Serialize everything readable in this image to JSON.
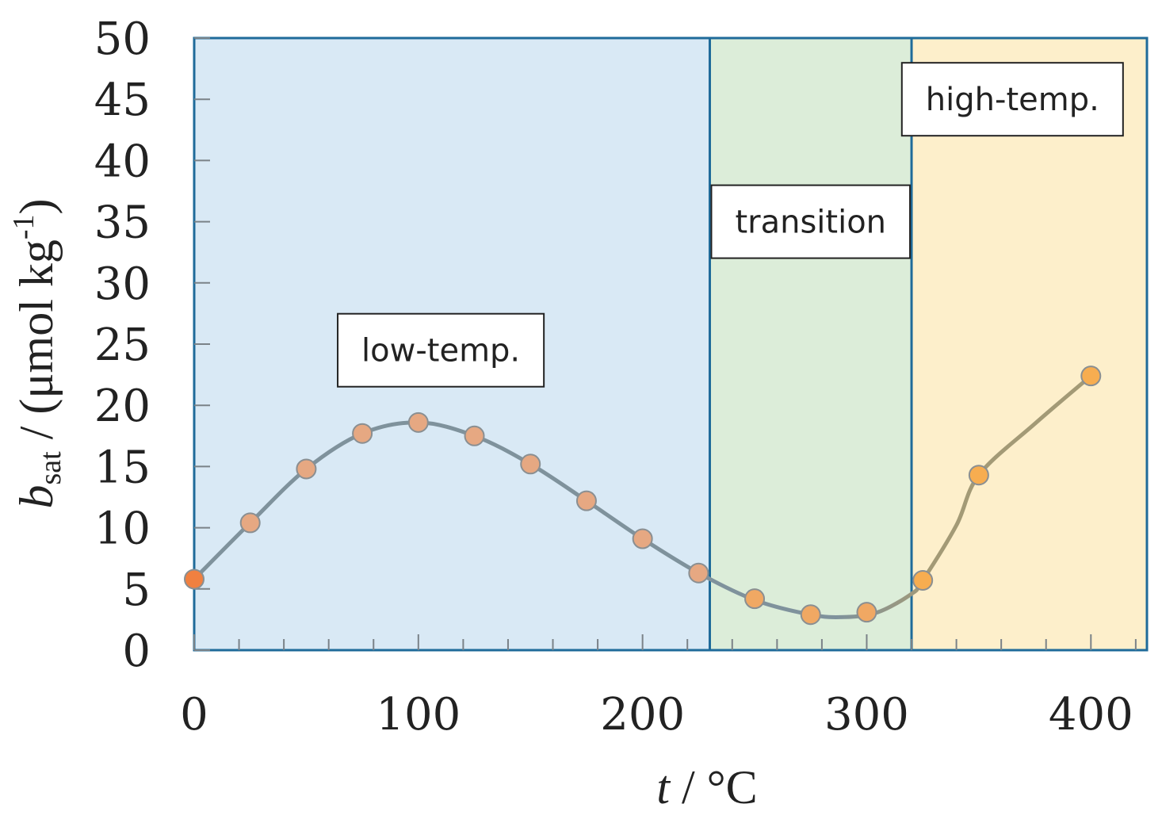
{
  "chart_data": {
    "type": "scatter",
    "title": "",
    "xlabel": {
      "italic": "t",
      "rest": " / °C"
    },
    "ylabel": {
      "italic": "b",
      "subscript": "sat",
      "rest": " / (μmol kg",
      "superscript": "-1",
      "close": ")"
    },
    "xlim": [
      0,
      425
    ],
    "ylim": [
      0,
      50
    ],
    "x_ticks": [
      0,
      100,
      200,
      300,
      400
    ],
    "x_minor_ticks": [
      20,
      40,
      60,
      80,
      120,
      140,
      160,
      180,
      220,
      240,
      260,
      280,
      320,
      340,
      360,
      380,
      420
    ],
    "y_ticks": [
      0,
      5,
      10,
      15,
      20,
      25,
      30,
      35,
      40,
      45,
      50
    ],
    "regions": [
      {
        "name": "low-temp.",
        "x_range": [
          0,
          230
        ],
        "color": "#d9e9f5",
        "label_at": [
          110,
          24.5
        ]
      },
      {
        "name": "transition",
        "x_range": [
          230,
          320
        ],
        "color": "#dcedd9",
        "label_at": [
          275,
          35
        ]
      },
      {
        "name": "high-temp.",
        "x_range": [
          320,
          425
        ],
        "color": "#fdefcb",
        "label_at": [
          365,
          45
        ]
      }
    ],
    "series": [
      {
        "name": "b_sat",
        "points": [
          {
            "x": 0,
            "y": 5.8,
            "color": "#f08040"
          },
          {
            "x": 25,
            "y": 10.4,
            "color": "#e6a882"
          },
          {
            "x": 50,
            "y": 14.8,
            "color": "#e6a882"
          },
          {
            "x": 75,
            "y": 17.7,
            "color": "#e6a882"
          },
          {
            "x": 100,
            "y": 18.6,
            "color": "#e6a882"
          },
          {
            "x": 125,
            "y": 17.5,
            "color": "#e6a882"
          },
          {
            "x": 150,
            "y": 15.2,
            "color": "#e6a882"
          },
          {
            "x": 175,
            "y": 12.2,
            "color": "#e6a882"
          },
          {
            "x": 200,
            "y": 9.1,
            "color": "#e6a882"
          },
          {
            "x": 225,
            "y": 6.3,
            "color": "#e6a882"
          },
          {
            "x": 250,
            "y": 4.2,
            "color": "#f0a863"
          },
          {
            "x": 275,
            "y": 2.9,
            "color": "#f0a863"
          },
          {
            "x": 300,
            "y": 3.1,
            "color": "#f0a863"
          },
          {
            "x": 325,
            "y": 5.7,
            "color": "#f7ad50"
          },
          {
            "x": 350,
            "y": 14.3,
            "color": "#f7ad50"
          },
          {
            "x": 400,
            "y": 22.4,
            "color": "#f7ad50"
          }
        ],
        "curve": [
          [
            0,
            5.8
          ],
          [
            25,
            10.4
          ],
          [
            50,
            14.8
          ],
          [
            75,
            17.7
          ],
          [
            100,
            18.6
          ],
          [
            125,
            17.5
          ],
          [
            150,
            15.2
          ],
          [
            175,
            12.2
          ],
          [
            200,
            9.1
          ],
          [
            225,
            6.3
          ],
          [
            250,
            4.1
          ],
          [
            275,
            2.9
          ],
          [
            290,
            2.7
          ],
          [
            305,
            3.1
          ],
          [
            320,
            4.6
          ],
          [
            325,
            5.7
          ],
          [
            340,
            10.2
          ],
          [
            350,
            14.3
          ],
          [
            375,
            18.5
          ],
          [
            400,
            22.4
          ]
        ],
        "curve_colors": {
          "left": "#7f929c",
          "right": "#a39a76"
        }
      }
    ],
    "colors": {
      "frame": "#1f6b9a",
      "point_stroke": "#8a8f92",
      "axis_text": "#222222"
    }
  }
}
